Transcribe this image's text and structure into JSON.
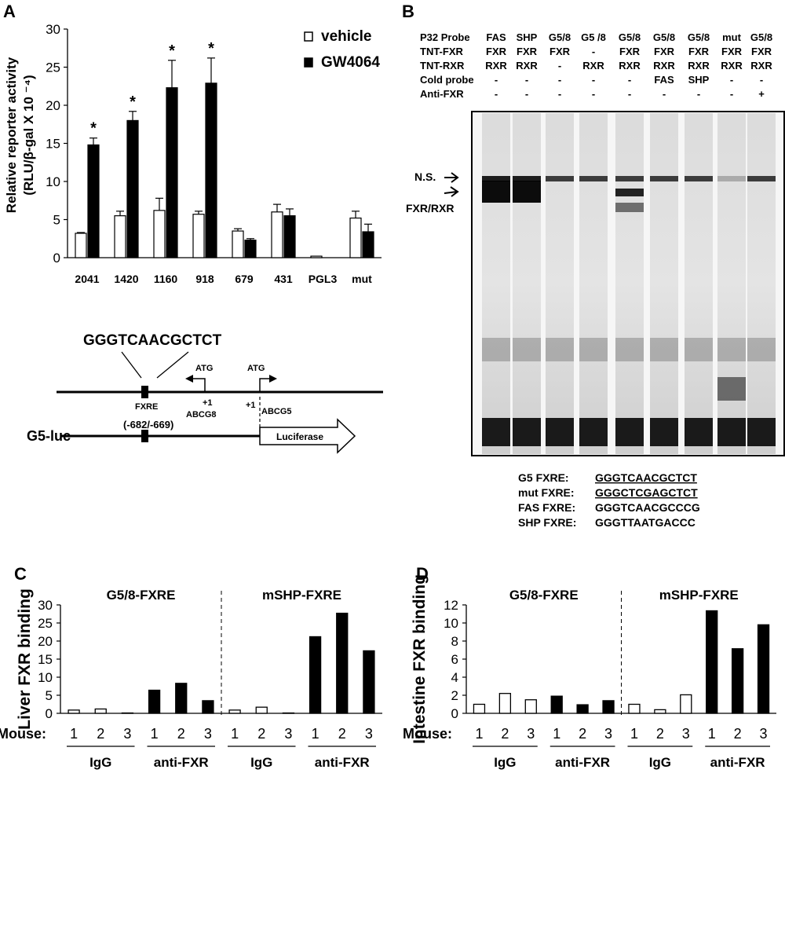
{
  "panels": {
    "A": "A",
    "B": "B",
    "C": "C",
    "D": "D"
  },
  "chart_data": [
    {
      "id": "A",
      "type": "bar",
      "ylabel_line1": "Relative reporter activity",
      "ylabel_line2": "(RLU/β-gal X 10 ⁻⁴)",
      "ylim": [
        0,
        30
      ],
      "yticks": [
        "0",
        "5",
        "10",
        "15",
        "20",
        "25",
        "30"
      ],
      "categories": [
        "2041",
        "1420",
        "1160",
        "918",
        "679",
        "431",
        "PGL3",
        "mut"
      ],
      "series": [
        {
          "name": "vehicle",
          "color": "#ffffff",
          "values": [
            3.2,
            5.5,
            6.2,
            5.7,
            3.5,
            6.0,
            0.2,
            5.2
          ],
          "errors": [
            0.1,
            0.6,
            1.6,
            0.4,
            0.3,
            1.0,
            0.0,
            0.9
          ]
        },
        {
          "name": "GW4064",
          "color": "#000000",
          "values": [
            14.8,
            18.0,
            22.3,
            22.9,
            2.3,
            5.5,
            0.0,
            3.4
          ],
          "errors": [
            0.9,
            1.2,
            3.6,
            3.3,
            0.2,
            0.9,
            0.0,
            1.0
          ]
        }
      ],
      "significance": [
        "*",
        "*",
        "*",
        "*",
        "",
        "",
        "",
        ""
      ],
      "legend_position": "top-right"
    },
    {
      "id": "C",
      "type": "bar",
      "ylabel": "Liver FXR binding",
      "ylim": [
        0,
        30
      ],
      "yticks": [
        "0",
        "5",
        "10",
        "15",
        "20",
        "25",
        "30"
      ],
      "groups": [
        "G5/8-FXRE",
        "mSHP-FXRE"
      ],
      "x_prefix": "Mouse:",
      "mice": [
        "1",
        "2",
        "3"
      ],
      "treatments": [
        "IgG",
        "anti-FXR",
        "IgG",
        "anti-FXR"
      ],
      "values": [
        0.9,
        1.2,
        0.1,
        6.4,
        8.3,
        3.5,
        0.9,
        1.7,
        0.1,
        21.2,
        27.7,
        17.3
      ],
      "filled": [
        false,
        false,
        false,
        true,
        true,
        true,
        false,
        false,
        false,
        true,
        true,
        true
      ]
    },
    {
      "id": "D",
      "type": "bar",
      "ylabel": "Intestine FXR binding",
      "ylim": [
        0,
        12
      ],
      "yticks": [
        "0",
        "2",
        "4",
        "6",
        "8",
        "10",
        "12"
      ],
      "groups": [
        "G5/8-FXRE",
        "mSHP-FXRE"
      ],
      "x_prefix": "Mouse:",
      "mice": [
        "1",
        "2",
        "3"
      ],
      "treatments": [
        "IgG",
        "anti-FXR",
        "IgG",
        "anti-FXR"
      ],
      "values": [
        1.0,
        2.2,
        1.5,
        1.9,
        0.95,
        1.4,
        1.0,
        0.4,
        2.05,
        11.35,
        7.15,
        9.8
      ],
      "filled": [
        false,
        false,
        false,
        true,
        true,
        true,
        false,
        false,
        false,
        true,
        true,
        true
      ]
    }
  ],
  "diagram": {
    "sequence": "GGGTCAACGCTCT",
    "atg_left": "ATG",
    "atg_right": "ATG",
    "fxre": "FXRE",
    "plus1_left": "+1",
    "abcg8": "ABCG8",
    "plus1_right": "+1",
    "abcg5": "ABCG5",
    "coords": "(-682/-669)",
    "construct": "G5-luc",
    "reporter": "Luciferase"
  },
  "gel": {
    "row_labels": [
      "P32 Probe",
      "TNT-FXR",
      "TNT-RXR",
      "Cold probe",
      "Anti-FXR"
    ],
    "lanes": [
      [
        "FAS",
        "FXR",
        "RXR",
        "-",
        "-"
      ],
      [
        "SHP",
        "FXR",
        "RXR",
        "-",
        "-"
      ],
      [
        "G5/8",
        "FXR",
        "-",
        "-",
        "-"
      ],
      [
        "G5 /8",
        "-",
        "RXR",
        "-",
        "-"
      ],
      [
        "G5/8",
        "FXR",
        "RXR",
        "-",
        "-"
      ],
      [
        "G5/8",
        "FXR",
        "RXR",
        "FAS",
        "-"
      ],
      [
        "G5/8",
        "FXR",
        "RXR",
        "SHP",
        "-"
      ],
      [
        "mut",
        "FXR",
        "RXR",
        "-",
        "-"
      ],
      [
        "G5/8",
        "FXR",
        "RXR",
        "-",
        "+"
      ]
    ],
    "ns_label": "N.S.",
    "fxr_label": "FXR/RXR",
    "sequences": [
      {
        "label": "G5   FXRE:",
        "seq": "GGGTCAACGCTCT"
      },
      {
        "label": "mut FXRE:",
        "seq": "GGGCTCGAGCTCT"
      },
      {
        "label": "FAS FXRE:",
        "seq": "GGGTCAACGCCCG"
      },
      {
        "label": "SHP FXRE:",
        "seq": "GGGTTAATGACCC"
      }
    ]
  }
}
